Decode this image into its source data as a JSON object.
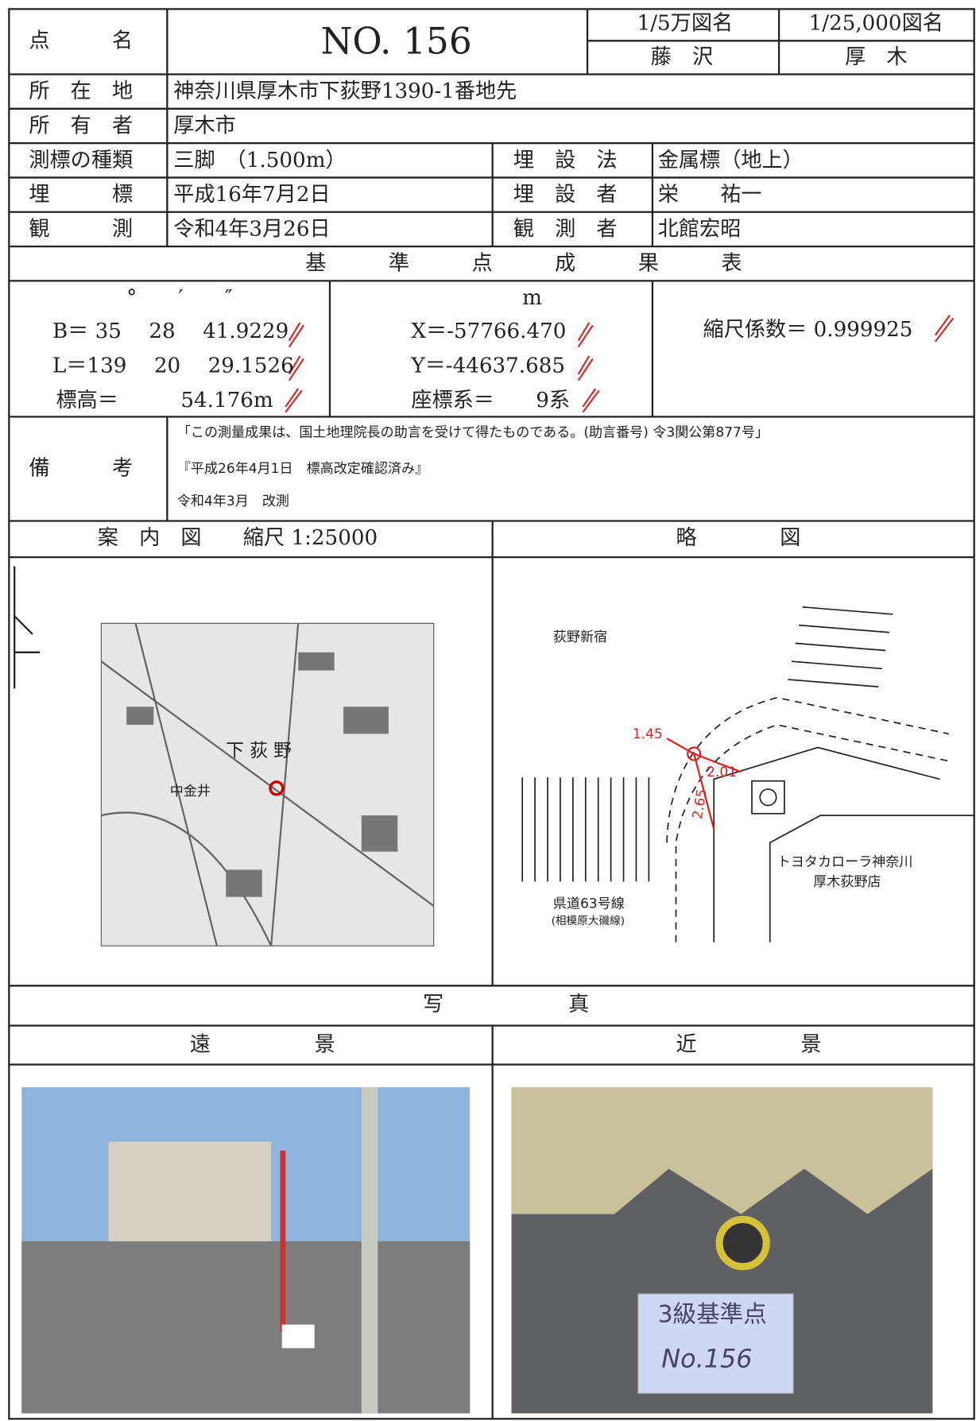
{
  "header": {
    "point_name_label": "点　　　名",
    "point_no": "NO. 156",
    "map_50k_label": "1/5万図名",
    "map_25k_label": "1/25,000図名",
    "map_50k": "藤　沢",
    "map_25k": "厚　木"
  },
  "info": {
    "location_label": "所　在　地",
    "location": "神奈川県厚木市下荻野1390-1番地先",
    "owner_label": "所　有　者",
    "owner": "厚木市",
    "marker_type_label": "測標の種類",
    "marker_type": "三脚　（1.500m）",
    "burial_method_label": "埋　設　法",
    "burial_method": "金属標（地上）",
    "burial_label": "埋　　　標",
    "burial_date": "平成16年7月2日",
    "burier_label": "埋　設　者",
    "burier": "栄　　祐一",
    "observation_label": "観　　　測",
    "observation_date": "令和4年3月26日",
    "observer_label": "観　測　者",
    "observer": "北館宏昭"
  },
  "results": {
    "title": "基　　　準　　　点　　　成　　　果　　　表",
    "angle_units": "°　　′　　″",
    "B": "B＝ 35　 28　 41.9229",
    "L": "L＝139　 20　 29.1526",
    "height": "標高＝　　　54.176m",
    "m_unit": "m",
    "X": "X＝-57766.470",
    "Y": "Y＝-44637.685",
    "coord_system": "座標系＝　　9系",
    "scale_factor": "縮尺係数＝ 0.999925"
  },
  "remarks": {
    "label": "備　　　考",
    "lines": [
      "「この測量成果は、国土地理院長の助言を受けて得たものである。(助言番号) 令3関公第877号」",
      "『平成26年4月1日　標高改定確認済み』",
      "令和4年3月　改測"
    ]
  },
  "maps": {
    "guide_title": "案　内　図　　縮尺 1:25000",
    "sketch_title": "略　　　　図",
    "guide_labels": [
      "下 荻 野",
      "中金井"
    ],
    "sketch_labels": {
      "area": "荻野新宿",
      "d1": "1.45",
      "d2": "2.01",
      "d3": "2.65",
      "store1": "トヨタカローラ神奈川",
      "store2": "厚木荻野店",
      "road1": "県道63号線",
      "road2": "(相模原大磯線)"
    }
  },
  "photos": {
    "title": "写　　　　　　真",
    "far_title": "遠　　　　　景",
    "near_title": "近　　　　　景",
    "plate_lines": [
      "3級基準点",
      "No.156"
    ]
  }
}
